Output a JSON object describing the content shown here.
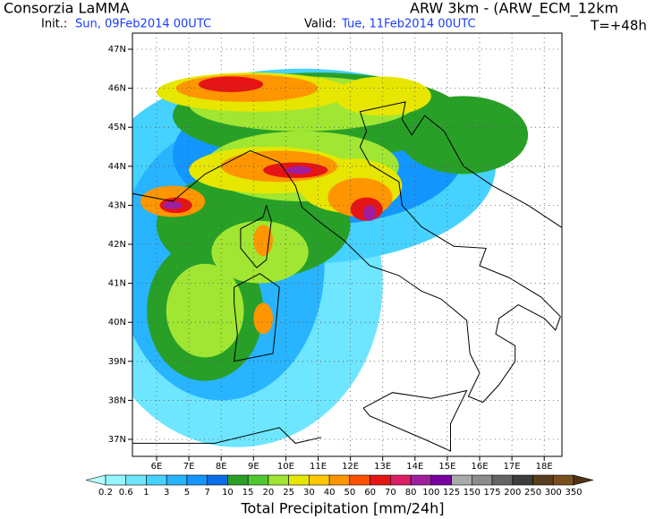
{
  "header": {
    "agency": "Consorzia LaMMA",
    "model": "ARW 3km - (ARW_ECM_12km",
    "init_label": "Init.:",
    "init_time": "Sun, 09Feb2014 00UTC",
    "valid_label": "Valid:",
    "valid_time": "Tue, 11Feb2014 00UTC",
    "lead_time": "T=+48h"
  },
  "map": {
    "lat_labels": [
      "47N",
      "46N",
      "45N",
      "44N",
      "43N",
      "42N",
      "41N",
      "40N",
      "39N",
      "38N",
      "37N"
    ],
    "lon_labels": [
      "6E",
      "7E",
      "8E",
      "9E",
      "10E",
      "11E",
      "12E",
      "13E",
      "14E",
      "15E",
      "16E",
      "17E",
      "18E"
    ]
  },
  "colorbar": {
    "title": "Total Precipitation [mm/24h]",
    "labels": [
      "0.2",
      "0.6",
      "1",
      "3",
      "5",
      "7",
      "10",
      "15",
      "20",
      "25",
      "30",
      "40",
      "50",
      "60",
      "70",
      "80",
      "100",
      "125",
      "150",
      "175",
      "200",
      "250",
      "300",
      "350"
    ],
    "colors": [
      "#b4ffff",
      "#96f5ff",
      "#6ee6ff",
      "#46d2ff",
      "#28b4ff",
      "#1496ff",
      "#0a6ee6",
      "#28a028",
      "#50c832",
      "#a0e632",
      "#e6e600",
      "#ffc800",
      "#ff9600",
      "#ff5000",
      "#e61414",
      "#dc1e64",
      "#a01ea0",
      "#7800a0",
      "#aaaaaa",
      "#8c8c8c",
      "#646464",
      "#3c3c3c",
      "#5a3c1e",
      "#78501e",
      "#503214"
    ]
  }
}
